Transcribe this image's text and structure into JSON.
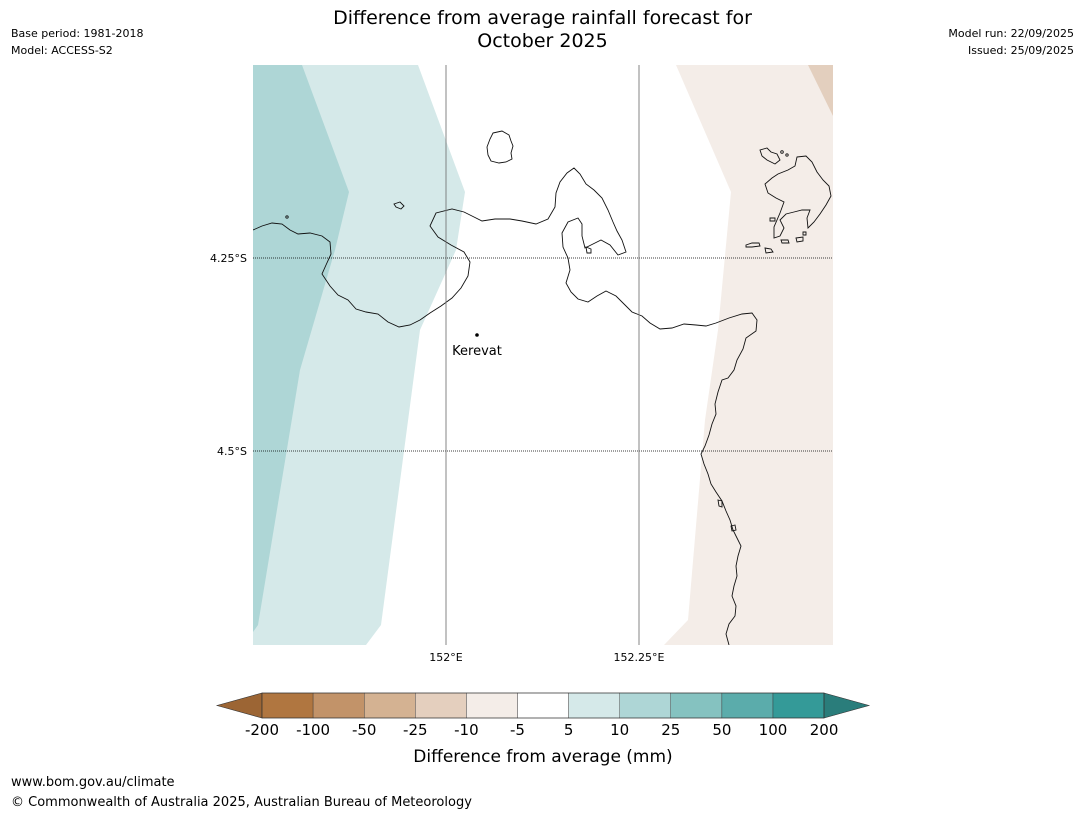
{
  "title": {
    "line1": "Difference from average rainfall forecast for",
    "line2": "October 2025"
  },
  "meta_left": {
    "base_period": "Base period: 1981-2018",
    "model": "Model: ACCESS-S2"
  },
  "meta_right": {
    "model_run": "Model run: 22/09/2025",
    "issued": "Issued: 25/09/2025"
  },
  "map": {
    "lat_labels": [
      "4.25°S",
      "4.5°S"
    ],
    "lon_labels": [
      "152°E",
      "152.25°E"
    ],
    "place": "Kerevat",
    "colors": {
      "wet_10_25": "#aed6d6",
      "wet_5_10": "#d5e9e9",
      "dry_5_10": "#f4ede8",
      "dry_10_25": "#e3cfbe",
      "coastline": "#111111",
      "gridline": "#777777"
    }
  },
  "colorbar": {
    "ticks": [
      "-200",
      "-100",
      "-50",
      "-25",
      "-10",
      "-5",
      "5",
      "10",
      "25",
      "50",
      "100",
      "200"
    ],
    "colors": [
      "#9c6534",
      "#b07640",
      "#c29369",
      "#d4b292",
      "#e4cfbe",
      "#f4ede8",
      "#ffffff",
      "#d5e9e9",
      "#aed6d6",
      "#85c2c0",
      "#5bacab",
      "#349a98",
      "#2a7d7b"
    ],
    "label": "Difference from average (mm)"
  },
  "footer": {
    "url": "www.bom.gov.au/climate",
    "copyright": "© Commonwealth of Australia 2025, Australian Bureau of Meteorology"
  }
}
